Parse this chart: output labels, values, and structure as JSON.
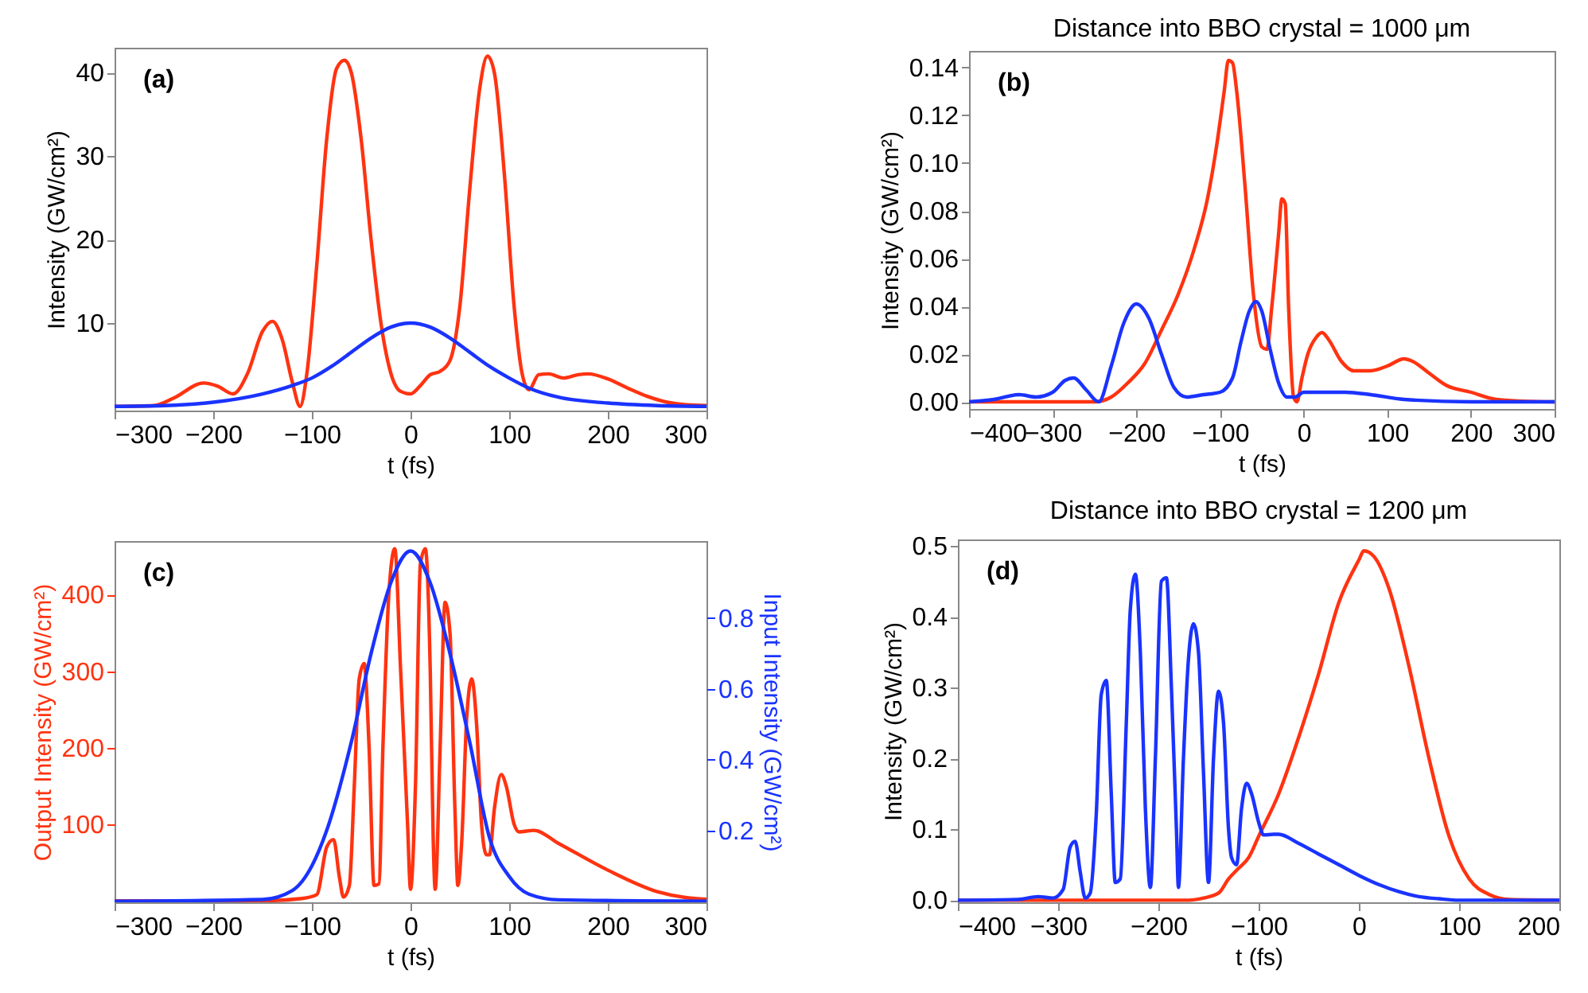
{
  "chart_data": [
    {
      "type": "line",
      "xlabel": "t (fs)",
      "ylabel": "Intensity (GW/cm²)",
      "annotations": [
        "(a)"
      ],
      "xlim": [
        -300,
        300
      ],
      "xticks": [
        -300,
        -200,
        -100,
        0,
        100,
        200,
        300
      ],
      "ylim": [
        -0.5,
        43
      ],
      "yticks": [
        10,
        20,
        30,
        40
      ],
      "grid": false,
      "marker": "none",
      "line_style": "solid",
      "legend": false,
      "series": [
        {
          "color": "#ff3311",
          "x": [
            -300,
            -260,
            -240,
            -210,
            -195,
            -180,
            -165,
            -150,
            -140,
            -130,
            -120,
            -112,
            -105,
            -95,
            -85,
            -75,
            -67,
            -60,
            -50,
            -40,
            -30,
            -20,
            -10,
            0,
            10,
            20,
            30,
            40,
            50,
            60,
            70,
            78,
            85,
            95,
            105,
            113,
            120,
            130,
            140,
            155,
            170,
            180,
            200,
            220,
            240,
            260,
            280,
            300
          ],
          "values": [
            0,
            0.1,
            1,
            2.8,
            2.4,
            1.5,
            4,
            9,
            10.2,
            8,
            3,
            0,
            4,
            17,
            32,
            40.5,
            41.5,
            40,
            32,
            20,
            10,
            4,
            1.8,
            1.5,
            2.5,
            3.8,
            4.2,
            5.5,
            12,
            26,
            38,
            42,
            40,
            28,
            12,
            4,
            2,
            3.8,
            3.9,
            3.4,
            3.8,
            3.9,
            3.3,
            2.2,
            1.2,
            0.5,
            0.2,
            0.1
          ]
        },
        {
          "color": "#1a33ff",
          "x": [
            -300,
            -250,
            -200,
            -150,
            -120,
            -100,
            -80,
            -60,
            -40,
            -20,
            0,
            20,
            40,
            60,
            80,
            100,
            120,
            150,
            200,
            250,
            300
          ],
          "values": [
            0,
            0.1,
            0.5,
            1.5,
            2.5,
            3.4,
            4.8,
            6.5,
            8.2,
            9.5,
            10,
            9.5,
            8.2,
            6.5,
            4.8,
            3.4,
            2.2,
            1.1,
            0.4,
            0.1,
            0
          ]
        }
      ]
    },
    {
      "type": "line",
      "title": "Distance into BBO crystal = 1000 μm",
      "xlabel": "t (fs)",
      "ylabel": "Intensity (GW/cm²)",
      "annotations": [
        "(b)"
      ],
      "xlim": [
        -400,
        300
      ],
      "xticks": [
        -400,
        -300,
        -200,
        -100,
        0,
        100,
        200,
        300
      ],
      "ylim": [
        -0.003,
        0.147
      ],
      "yticks": [
        {
          "value": 0,
          "label": "0.00"
        },
        {
          "value": 0.02,
          "label": "0.02"
        },
        {
          "value": 0.04,
          "label": "0.04"
        },
        {
          "value": 0.06,
          "label": "0.06"
        },
        {
          "value": 0.08,
          "label": "0.08"
        },
        {
          "value": 0.1,
          "label": "0.10"
        },
        {
          "value": 0.12,
          "label": "0.12"
        },
        {
          "value": 0.14,
          "label": "0.14"
        }
      ],
      "grid": false,
      "marker": "none",
      "line_style": "solid",
      "legend": false,
      "series": [
        {
          "color": "#ff3311",
          "x": [
            -400,
            -250,
            -230,
            -210,
            -190,
            -170,
            -150,
            -130,
            -115,
            -105,
            -95,
            -90,
            -85,
            -80,
            -70,
            -60,
            -50,
            -44,
            -38,
            -30,
            -26,
            -22,
            -18,
            -12,
            -8,
            -2,
            5,
            15,
            22,
            30,
            45,
            60,
            80,
            100,
            120,
            130,
            150,
            170,
            200,
            230,
            260,
            300
          ],
          "values": [
            0,
            0,
            0.002,
            0.008,
            0.016,
            0.03,
            0.045,
            0.065,
            0.085,
            0.105,
            0.13,
            0.143,
            0.142,
            0.13,
            0.09,
            0.045,
            0.023,
            0.022,
            0.04,
            0.07,
            0.085,
            0.083,
            0.04,
            0.002,
            0,
            0.01,
            0.02,
            0.027,
            0.029,
            0.026,
            0.017,
            0.013,
            0.013,
            0.015,
            0.018,
            0.017,
            0.012,
            0.007,
            0.004,
            0.001,
            0.0003,
            0
          ]
        },
        {
          "color": "#1a33ff",
          "x": [
            -400,
            -370,
            -340,
            -320,
            -300,
            -285,
            -275,
            -260,
            -245,
            -230,
            -215,
            -200,
            -185,
            -170,
            -155,
            -140,
            -120,
            -100,
            -85,
            -75,
            -65,
            -57,
            -50,
            -40,
            -30,
            -20,
            -10,
            0,
            20,
            50,
            80,
            120,
            200,
            300
          ],
          "values": [
            0,
            0.001,
            0.003,
            0.002,
            0.004,
            0.009,
            0.01,
            0.005,
            0,
            0.015,
            0.033,
            0.041,
            0.035,
            0.02,
            0.006,
            0.002,
            0.003,
            0.004,
            0.01,
            0.025,
            0.038,
            0.042,
            0.038,
            0.022,
            0.008,
            0.002,
            0.002,
            0.004,
            0.004,
            0.004,
            0.003,
            0.001,
            0,
            0
          ]
        }
      ]
    },
    {
      "type": "line",
      "xlabel": "t (fs)",
      "ylabel": "Output Intensity (GW/cm²)",
      "y2label": "Input Intensity (GW/cm²)",
      "annotations": [
        "(c)"
      ],
      "xlim": [
        -300,
        300
      ],
      "xticks": [
        -300,
        -200,
        -100,
        0,
        100,
        200,
        300
      ],
      "ylim": [
        -2,
        470
      ],
      "yticks": [
        100,
        200,
        300,
        400
      ],
      "y2lim": [
        -0.003,
        1.018
      ],
      "y2ticks": [
        0.2,
        0.4,
        0.6,
        0.8
      ],
      "grid": false,
      "marker": "none",
      "line_style": "solid",
      "legend": false,
      "series": [
        {
          "color": "#ff3311",
          "x": [
            -300,
            -150,
            -110,
            -95,
            -85,
            -78,
            -72,
            -68,
            -62,
            -57,
            -52,
            -47,
            -42,
            -37,
            -32,
            -28,
            -22,
            -16,
            -10,
            -3,
            0,
            5,
            10,
            15,
            20,
            23,
            25,
            30,
            35,
            40,
            45,
            48,
            52,
            57,
            62,
            67,
            72,
            77,
            80,
            85,
            92,
            97,
            105,
            110,
            125,
            150,
            200,
            250,
            280,
            300
          ],
          "values": [
            0,
            0,
            3,
            8,
            70,
            80,
            30,
            5,
            20,
            150,
            290,
            310,
            200,
            20,
            22,
            200,
            400,
            460,
            300,
            100,
            15,
            150,
            440,
            460,
            300,
            80,
            15,
            200,
            390,
            350,
            120,
            20,
            80,
            240,
            290,
            230,
            100,
            60,
            60,
            120,
            165,
            150,
            100,
            90,
            92,
            75,
            40,
            12,
            4,
            2
          ]
        },
        {
          "color": "#1a33ff",
          "axis": "y2",
          "x": [
            -300,
            -150,
            -120,
            -100,
            -85,
            -60,
            -40,
            -20,
            0,
            20,
            40,
            60,
            80,
            100,
            120,
            150,
            300
          ],
          "values": [
            0,
            0.005,
            0.03,
            0.1,
            0.2,
            0.45,
            0.7,
            0.9,
            0.99,
            0.9,
            0.7,
            0.45,
            0.18,
            0.07,
            0.02,
            0.004,
            0
          ]
        }
      ]
    },
    {
      "type": "line",
      "title": "Distance into BBO crystal = 1200 μm",
      "xlabel": "t (fs)",
      "ylabel": "Intensity (GW/cm²)",
      "annotations": [
        "(d)"
      ],
      "xlim": [
        -400,
        200
      ],
      "xticks": [
        -400,
        -300,
        -200,
        -100,
        0,
        100,
        200
      ],
      "ylim": [
        -0.003,
        0.509
      ],
      "yticks": [
        {
          "value": 0,
          "label": "0.0"
        },
        0.1,
        0.2,
        0.3,
        0.4,
        0.5
      ],
      "grid": false,
      "marker": "none",
      "line_style": "solid",
      "legend": false,
      "series": [
        {
          "color": "#ff3311",
          "x": [
            -400,
            -170,
            -155,
            -140,
            -130,
            -120,
            -110,
            -100,
            -80,
            -60,
            -40,
            -20,
            0,
            5,
            15,
            30,
            50,
            70,
            90,
            110,
            130,
            150,
            200
          ],
          "values": [
            0,
            0,
            0.003,
            0.01,
            0.03,
            0.045,
            0.06,
            0.09,
            0.15,
            0.23,
            0.32,
            0.42,
            0.48,
            0.493,
            0.485,
            0.44,
            0.33,
            0.2,
            0.09,
            0.03,
            0.008,
            0.001,
            0
          ]
        },
        {
          "color": "#1a33ff",
          "x": [
            -400,
            -340,
            -320,
            -305,
            -295,
            -288,
            -283,
            -278,
            -273,
            -268,
            -262,
            -257,
            -252,
            -247,
            -243,
            -238,
            -232,
            -228,
            -223,
            -218,
            -213,
            -208,
            -203,
            -197,
            -192,
            -187,
            -182,
            -180,
            -175,
            -170,
            -165,
            -160,
            -155,
            -150,
            -145,
            -140,
            -135,
            -130,
            -127,
            -122,
            -117,
            -112,
            -107,
            -100,
            -95,
            -85,
            -80,
            -60,
            -40,
            -20,
            0,
            20,
            40,
            60,
            80,
            100,
            200
          ],
          "values": [
            0,
            0.001,
            0.005,
            0.003,
            0.015,
            0.075,
            0.083,
            0.04,
            0.003,
            0.01,
            0.12,
            0.29,
            0.31,
            0.15,
            0.025,
            0.03,
            0.25,
            0.41,
            0.46,
            0.35,
            0.13,
            0.018,
            0.2,
            0.45,
            0.455,
            0.3,
            0.1,
            0.018,
            0.2,
            0.34,
            0.39,
            0.35,
            0.18,
            0.025,
            0.2,
            0.295,
            0.25,
            0.1,
            0.06,
            0.05,
            0.13,
            0.165,
            0.15,
            0.11,
            0.092,
            0.093,
            0.093,
            0.08,
            0.065,
            0.05,
            0.035,
            0.022,
            0.012,
            0.005,
            0.002,
            0,
            0
          ]
        }
      ]
    }
  ]
}
